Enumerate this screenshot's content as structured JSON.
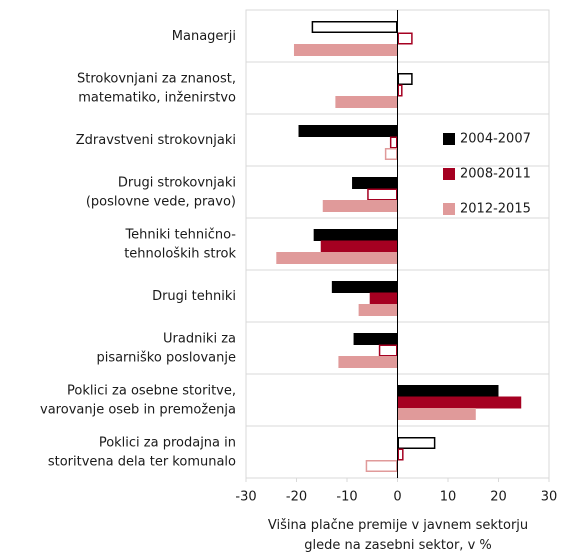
{
  "chart_data": {
    "type": "barh",
    "categories": [
      "Managerji",
      "Strokovnjani za znanost,\nmatematiko, inženirstvo",
      "Zdravstveni strokovnjaki",
      "Drugi strokovnjaki\n(poslovne vede, pravo)",
      "Tehniki tehnično-\ntehnoloških strok",
      "Drugi tehniki",
      "Uradniki za\npisarniško poslovanje",
      "Poklici za osebne storitve,\nvarovanje oseb in premoženja",
      "Poklici za prodajna in\nstoritvena dela ter komunalo"
    ],
    "series": [
      {
        "name": "2004-2007",
        "color": "#000000",
        "values": [
          -17,
          3,
          -19.6,
          -9,
          -16.6,
          -13,
          -8.7,
          20,
          7.5
        ],
        "filled": [
          false,
          false,
          true,
          true,
          true,
          true,
          true,
          true,
          false
        ]
      },
      {
        "name": "2008-2011",
        "color": "#a50021",
        "values": [
          3,
          1,
          -1.5,
          -6,
          -15.2,
          -5.5,
          -3.7,
          24.5,
          1.2
        ],
        "filled": [
          false,
          false,
          false,
          false,
          true,
          true,
          false,
          true,
          false
        ]
      },
      {
        "name": "2012-2015",
        "color": "#e09a9a",
        "values": [
          -20.5,
          -12.3,
          -2.5,
          -14.8,
          -24,
          -7.7,
          -11.7,
          15.5,
          -6.3
        ],
        "filled": [
          true,
          true,
          false,
          true,
          true,
          true,
          true,
          true,
          false
        ]
      }
    ],
    "xlim": [
      -30,
      30
    ],
    "xticks": [
      -30,
      -20,
      -10,
      0,
      10,
      20,
      30
    ],
    "xlabel": "Višina plačne premije v javnem sektorju\nglede na zasebni sektor, v %"
  }
}
